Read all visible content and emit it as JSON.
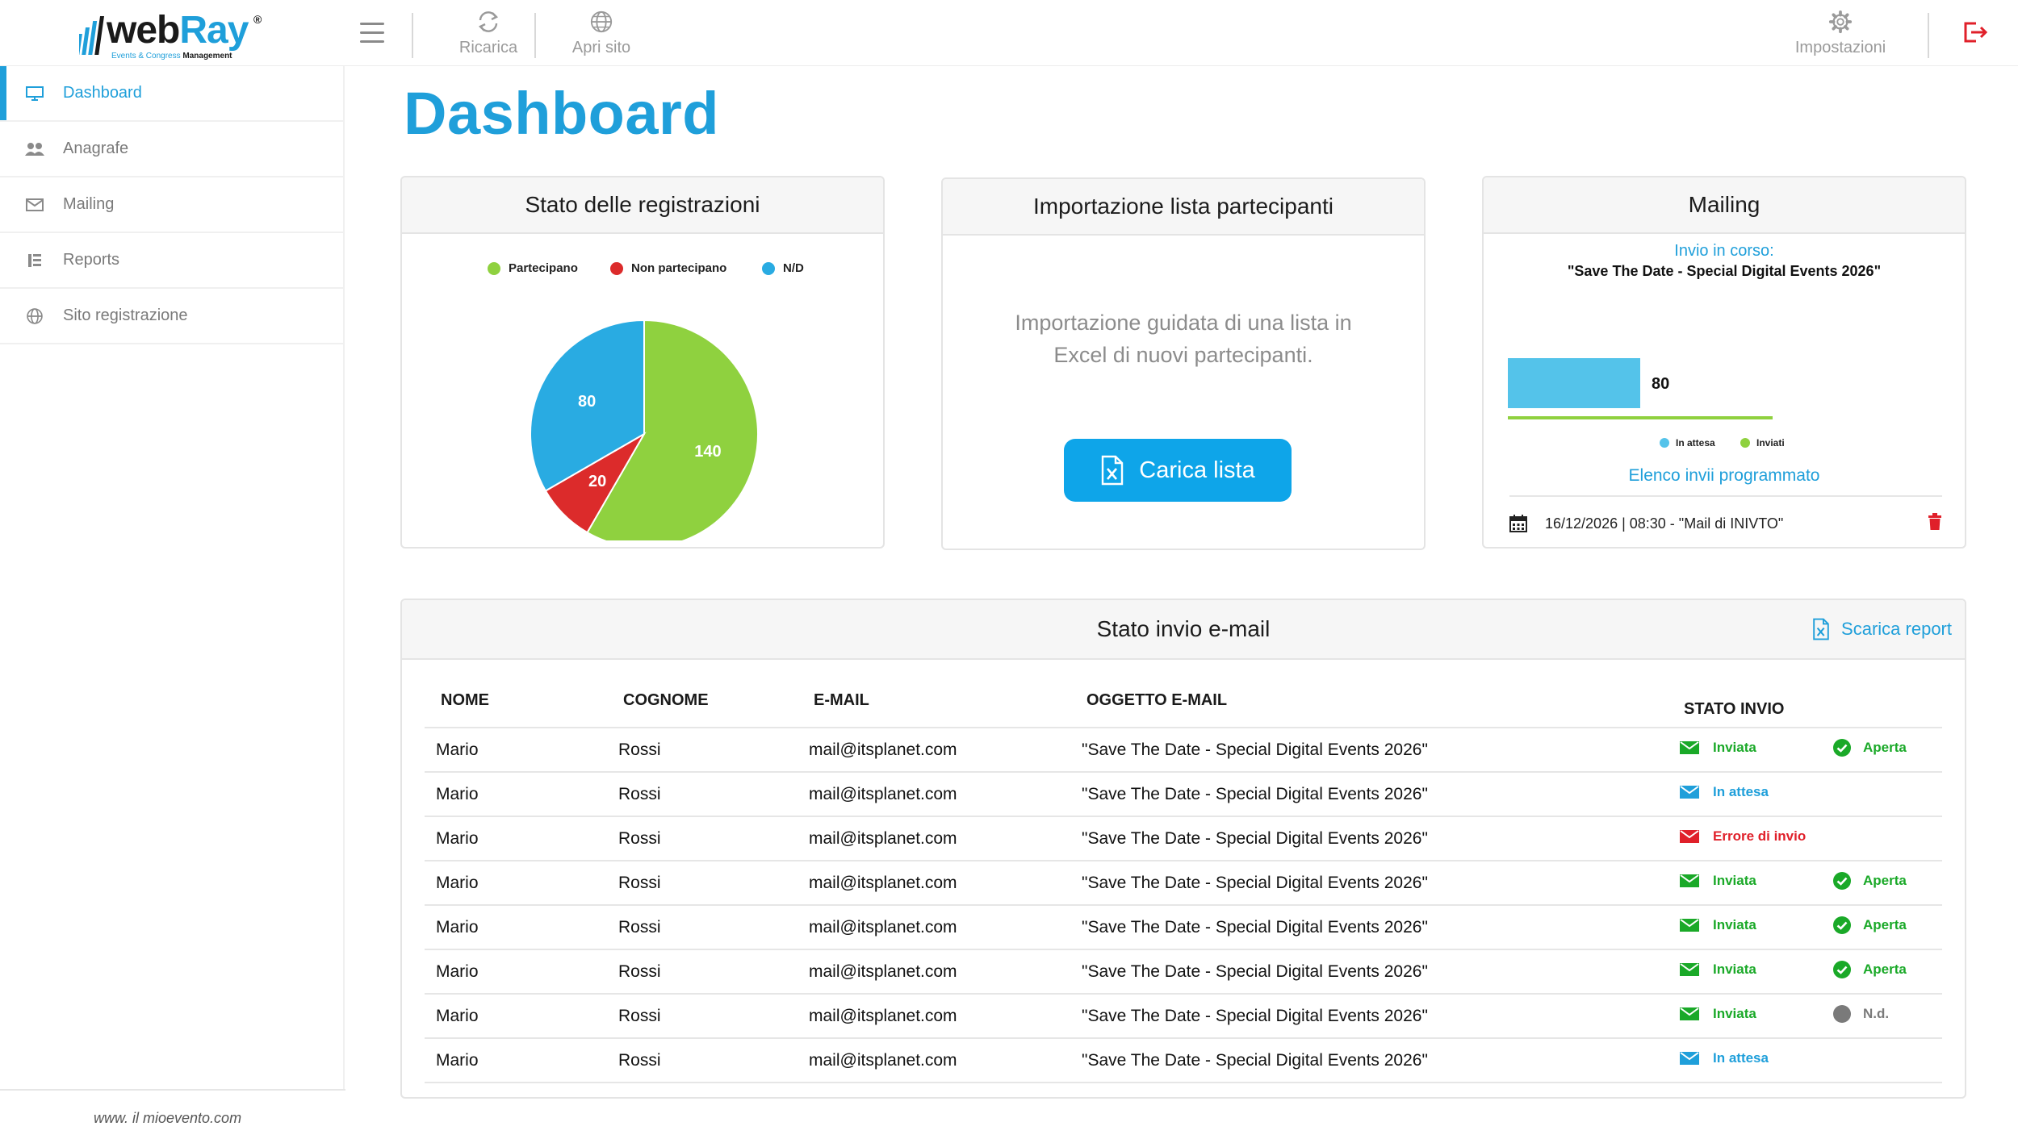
{
  "app": {
    "logo_primary": "web",
    "logo_secondary": "Ray",
    "logo_reg": "®",
    "tagline_prefix": "Events & Congress",
    "tagline_suffix": "Management",
    "footer_url": "www. il mioevento.com"
  },
  "toolbar": {
    "reload_label": "Ricarica",
    "open_site_label": "Apri sito",
    "settings_label": "Impostazioni"
  },
  "sidebar": {
    "items": [
      {
        "label": "Dashboard",
        "icon": "monitor-icon",
        "active": true
      },
      {
        "label": "Anagrafe",
        "icon": "users-icon",
        "active": false
      },
      {
        "label": "Mailing",
        "icon": "envelope-icon",
        "active": false
      },
      {
        "label": "Reports",
        "icon": "report-icon",
        "active": false
      },
      {
        "label": "Sito registrazione",
        "icon": "globe-icon",
        "active": false
      }
    ]
  },
  "page": {
    "title": "Dashboard"
  },
  "registrations": {
    "title": "Stato delle registrazioni",
    "legend": [
      "Partecipano",
      "Non partecipano",
      "N/D"
    ]
  },
  "chart_data": [
    {
      "type": "pie",
      "title": "Stato delle registrazioni",
      "categories": [
        "Partecipano",
        "Non partecipano",
        "N/D"
      ],
      "values": [
        140,
        20,
        80
      ],
      "colors": [
        "#8fd13f",
        "#dc2b2b",
        "#29abe2"
      ],
      "legend": "top"
    },
    {
      "type": "bar",
      "orientation": "horizontal",
      "title": "Mailing",
      "categories": [
        "In attesa",
        "Inviati"
      ],
      "values": [
        80,
        160
      ],
      "colors": [
        "#54c3ea",
        "#8fd13f"
      ],
      "legend": "bottom"
    }
  ],
  "import": {
    "title": "Importazione lista partecipanti",
    "text_line1": "Importazione guidata di una lista in",
    "text_line2": "Excel di nuovi partecipanti.",
    "button_label": "Carica lista"
  },
  "mailing": {
    "title": "Mailing",
    "in_progress_label": "Invio in corso:",
    "subject": "\"Save The Date - Special Digital Events 2026\"",
    "legend": [
      "In attesa",
      "Inviati"
    ],
    "schedule_link": "Elenco invii programmato",
    "scheduled_item": "16/12/2026 | 08:30 - \"Mail di INIVTO\""
  },
  "email_status": {
    "title": "Stato invio e-mail",
    "report_label": "Scarica report",
    "columns": [
      "NOME",
      "COGNOME",
      "E-MAIL",
      "OGGETTO E-MAIL",
      "STATO INVIO"
    ],
    "rows": [
      {
        "nome": "Mario",
        "cognome": "Rossi",
        "email": "mail@itsplanet.com",
        "oggetto": "\"Save The Date - Special Digital Events 2026\"",
        "stato": "Inviata",
        "stato_type": "sent",
        "apertura": "Aperta",
        "apertura_type": "open"
      },
      {
        "nome": "Mario",
        "cognome": "Rossi",
        "email": "mail@itsplanet.com",
        "oggetto": "\"Save The Date - Special Digital Events 2026\"",
        "stato": "In attesa",
        "stato_type": "waiting",
        "apertura": "",
        "apertura_type": "none"
      },
      {
        "nome": "Mario",
        "cognome": "Rossi",
        "email": "mail@itsplanet.com",
        "oggetto": "\"Save The Date - Special Digital Events 2026\"",
        "stato": "Errore di invio",
        "stato_type": "error",
        "apertura": "",
        "apertura_type": "none"
      },
      {
        "nome": "Mario",
        "cognome": "Rossi",
        "email": "mail@itsplanet.com",
        "oggetto": "\"Save The Date - Special Digital Events 2026\"",
        "stato": "Inviata",
        "stato_type": "sent",
        "apertura": "Aperta",
        "apertura_type": "open"
      },
      {
        "nome": "Mario",
        "cognome": "Rossi",
        "email": "mail@itsplanet.com",
        "oggetto": "\"Save The Date - Special Digital Events 2026\"",
        "stato": "Inviata",
        "stato_type": "sent",
        "apertura": "Aperta",
        "apertura_type": "open"
      },
      {
        "nome": "Mario",
        "cognome": "Rossi",
        "email": "mail@itsplanet.com",
        "oggetto": "\"Save The Date - Special Digital Events 2026\"",
        "stato": "Inviata",
        "stato_type": "sent",
        "apertura": "Aperta",
        "apertura_type": "open"
      },
      {
        "nome": "Mario",
        "cognome": "Rossi",
        "email": "mail@itsplanet.com",
        "oggetto": "\"Save The Date - Special Digital Events 2026\"",
        "stato": "Inviata",
        "stato_type": "sent",
        "apertura": "N.d.",
        "apertura_type": "nd"
      },
      {
        "nome": "Mario",
        "cognome": "Rossi",
        "email": "mail@itsplanet.com",
        "oggetto": "\"Save The Date - Special Digital Events 2026\"",
        "stato": "In attesa",
        "stato_type": "waiting",
        "apertura": "",
        "apertura_type": "none"
      }
    ]
  },
  "colors": {
    "accent": "#1f9fda",
    "button": "#0ea5e9",
    "green": "#1aa928",
    "red": "#e0202a"
  }
}
